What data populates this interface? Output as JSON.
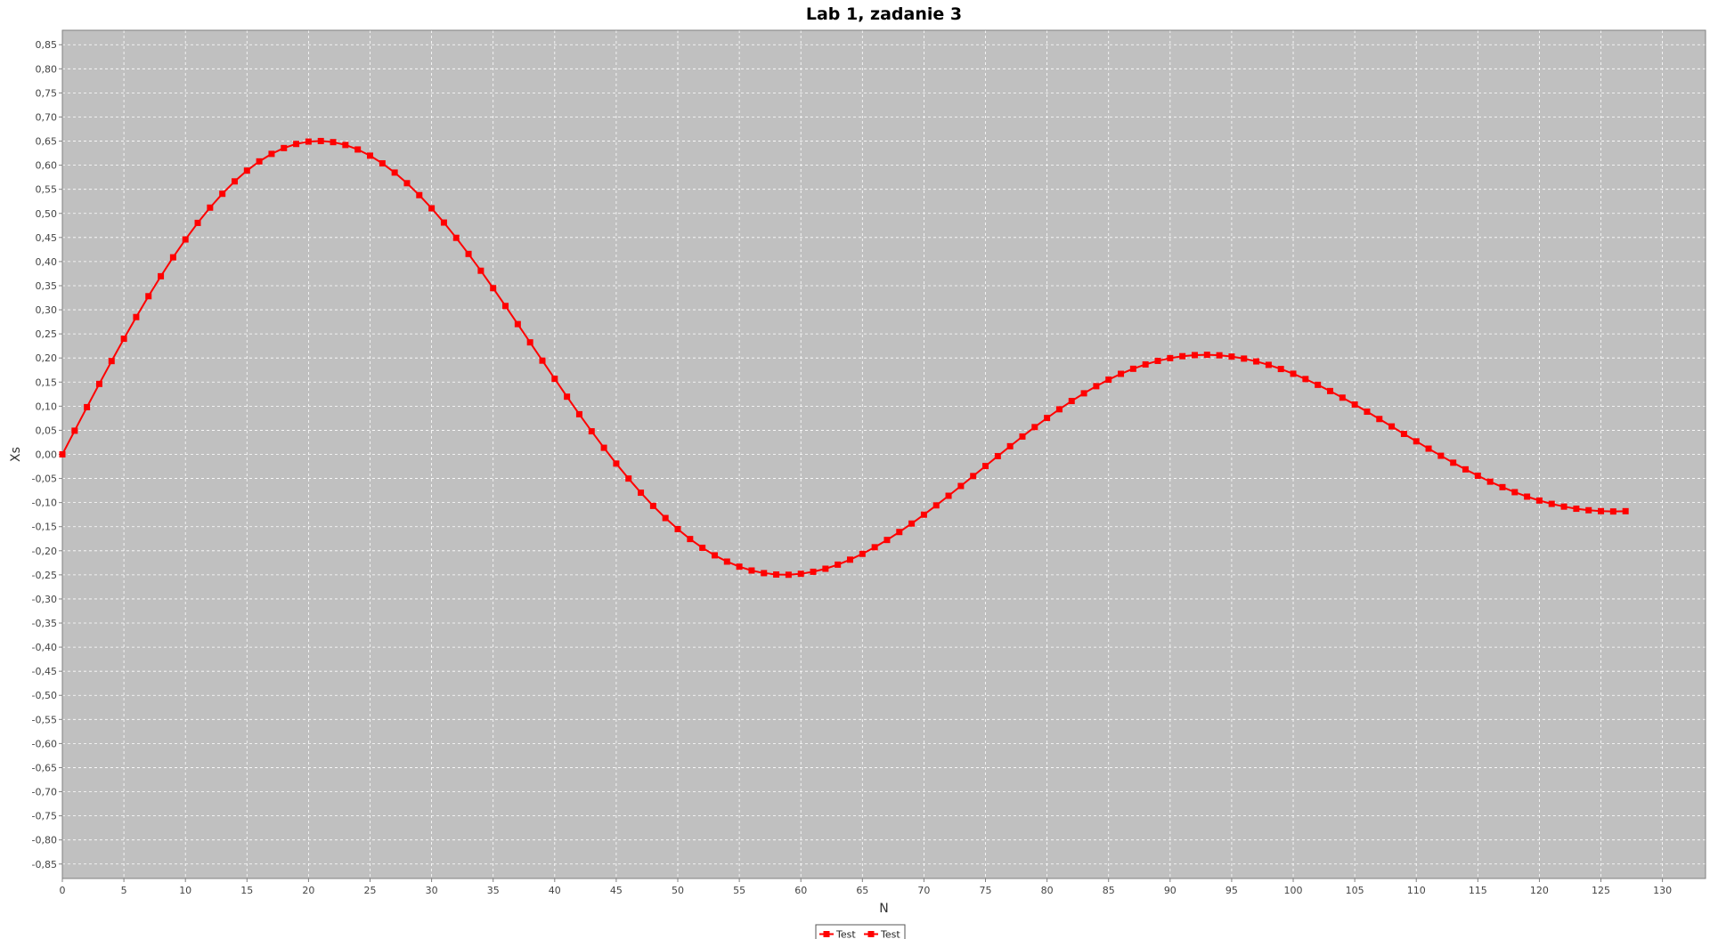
{
  "colors": {
    "plot_background": "#c0c0c0",
    "gridline": "#ffffff",
    "series": "#ff0000",
    "axis": "#808080"
  },
  "chart_data": {
    "type": "line",
    "title": "Lab 1, zadanie 3",
    "xlabel": "N",
    "ylabel": "Xs",
    "xlim": [
      0,
      133.5
    ],
    "ylim": [
      -0.88,
      0.88
    ],
    "x_ticks": [
      0,
      5,
      10,
      15,
      20,
      25,
      30,
      35,
      40,
      45,
      50,
      55,
      60,
      65,
      70,
      75,
      80,
      85,
      90,
      95,
      100,
      105,
      110,
      115,
      120,
      125,
      130
    ],
    "y_ticks": [
      -0.85,
      -0.8,
      -0.75,
      -0.7,
      -0.65,
      -0.6,
      -0.55,
      -0.5,
      -0.45,
      -0.4,
      -0.35,
      -0.3,
      -0.25,
      -0.2,
      -0.15,
      -0.1,
      -0.05,
      0,
      0.05,
      0.1,
      0.15,
      0.2,
      0.25,
      0.3,
      0.35,
      0.4,
      0.45,
      0.5,
      0.55,
      0.6,
      0.65,
      0.7,
      0.75,
      0.8,
      0.85
    ],
    "x_tick_labels": [
      "0",
      "5",
      "10",
      "15",
      "20",
      "25",
      "30",
      "35",
      "40",
      "45",
      "50",
      "55",
      "60",
      "65",
      "70",
      "75",
      "80",
      "85",
      "90",
      "95",
      "100",
      "105",
      "110",
      "115",
      "120",
      "125",
      "130"
    ],
    "y_tick_labels": [
      "-0,85",
      "-0,80",
      "-0,75",
      "-0,70",
      "-0,65",
      "-0,60",
      "-0,55",
      "-0,50",
      "-0,45",
      "-0,40",
      "-0,35",
      "-0,30",
      "-0,25",
      "-0,20",
      "-0,15",
      "-0,10",
      "-0,05",
      "0,00",
      "0,05",
      "0,10",
      "0,15",
      "0,20",
      "0,25",
      "0,30",
      "0,35",
      "0,40",
      "0,45",
      "0,50",
      "0,55",
      "0,60",
      "0,65",
      "0,70",
      "0,75",
      "0,80",
      "0,85"
    ],
    "grid": true,
    "legend": {
      "position": "bottom-center",
      "entries": [
        "Test",
        "Test"
      ]
    },
    "series": [
      {
        "name": "Test",
        "x": [
          0,
          1,
          2,
          3,
          4,
          5,
          6,
          7,
          8,
          9,
          10,
          11,
          12,
          13,
          14,
          15,
          16,
          17,
          18,
          19,
          20,
          21,
          22,
          23,
          24,
          25,
          26,
          27,
          28,
          29,
          30,
          31,
          32,
          33,
          34,
          35,
          36,
          37,
          38,
          39,
          40,
          41,
          42,
          43,
          44,
          45,
          46,
          47,
          48,
          49,
          50,
          51,
          52,
          53,
          54,
          55,
          56,
          57,
          58,
          59,
          60,
          61,
          62,
          63,
          64,
          65,
          66,
          67,
          68,
          69,
          70,
          71,
          72,
          73,
          74,
          75,
          76,
          77,
          78,
          79,
          80,
          81,
          82,
          83,
          84,
          85,
          86,
          87,
          88,
          89,
          90,
          91,
          92,
          93,
          94,
          95,
          96,
          97,
          98,
          99,
          100,
          101,
          102,
          103,
          104,
          105,
          106,
          107,
          108,
          109,
          110,
          111,
          112,
          113,
          114,
          115,
          116,
          117,
          118,
          119,
          120,
          121,
          122,
          123,
          124,
          125,
          126,
          127
        ],
        "values": [
          0,
          0.0491,
          0.098,
          0.1462,
          0.1936,
          0.2399,
          0.2849,
          0.3282,
          0.3696,
          0.4089,
          0.4459,
          0.4803,
          0.512,
          0.5407,
          0.5664,
          0.5888,
          0.6079,
          0.6235,
          0.6356,
          0.6441,
          0.649,
          0.6502,
          0.6479,
          0.642,
          0.6326,
          0.6198,
          0.6038,
          0.5847,
          0.5627,
          0.5379,
          0.5106,
          0.481,
          0.4493,
          0.4159,
          0.381,
          0.3449,
          0.3079,
          0.2703,
          0.2324,
          0.1945,
          0.1568,
          0.1197,
          0.0833,
          0.0479,
          0.0137,
          -0.0191,
          -0.0502,
          -0.0795,
          -0.1069,
          -0.1321,
          -0.1551,
          -0.1757,
          -0.1938,
          -0.2095,
          -0.2225,
          -0.233,
          -0.241,
          -0.2464,
          -0.2493,
          -0.2498,
          -0.2478,
          -0.2436,
          -0.2373,
          -0.2288,
          -0.2185,
          -0.2064,
          -0.1927,
          -0.1776,
          -0.1611,
          -0.1436,
          -0.1251,
          -0.1058,
          -0.0859,
          -0.0656,
          -0.045,
          -0.0242,
          -0.0036,
          0.0169,
          0.037,
          0.0566,
          0.0755,
          0.0936,
          0.1107,
          0.1267,
          0.1415,
          0.155,
          0.1671,
          0.1776,
          0.1866,
          0.194,
          0.1997,
          0.2037,
          0.206,
          0.2066,
          0.2056,
          0.2029,
          0.1987,
          0.1929,
          0.1857,
          0.1771,
          0.1673,
          0.1563,
          0.1443,
          0.1314,
          0.1177,
          0.1034,
          0.0886,
          0.0734,
          0.058,
          0.0425,
          0.0271,
          0.0119,
          -0.0029,
          -0.0173,
          -0.0311,
          -0.0443,
          -0.0566,
          -0.068,
          -0.0784,
          -0.0877,
          -0.0958,
          -0.1027,
          -0.1084,
          -0.1128,
          -0.1159,
          -0.1178,
          -0.1185,
          -0.1179
        ]
      }
    ]
  }
}
